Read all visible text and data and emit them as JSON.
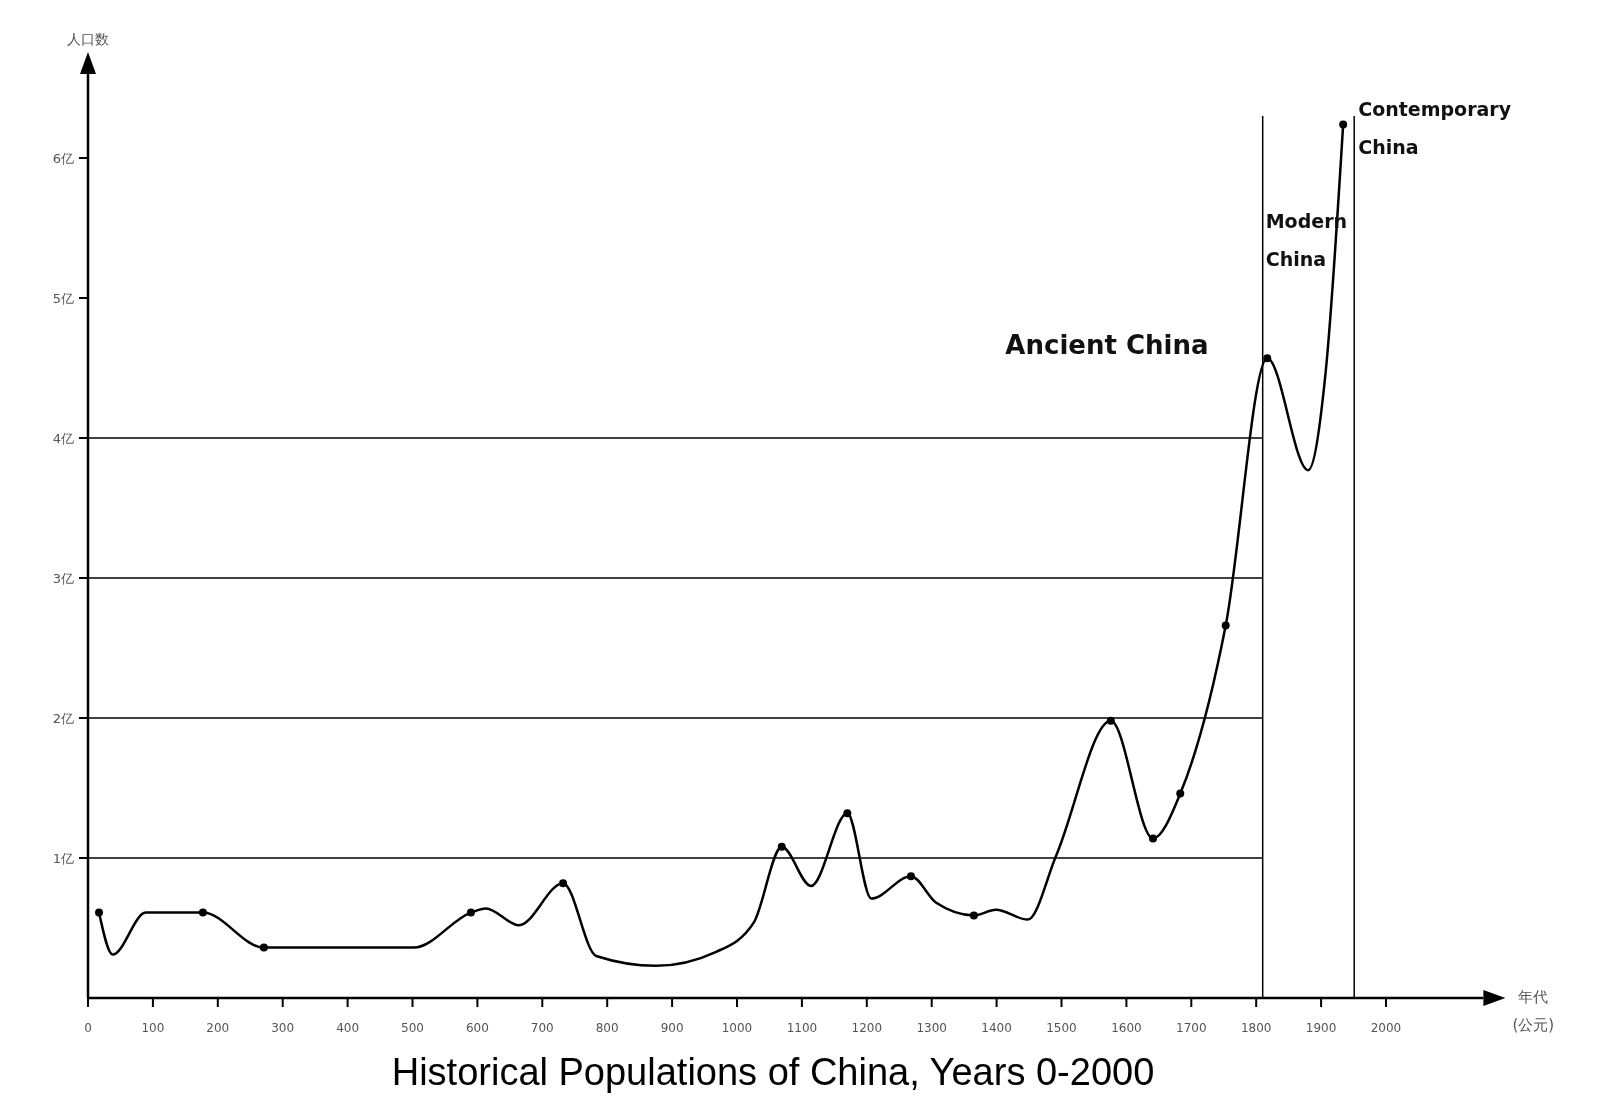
{
  "chart_data": {
    "type": "line",
    "title": "Historical Populations of China, Years 0-2000",
    "xlabel": "年代 (公元)",
    "ylabel": "人口数",
    "xlim": [
      0,
      2150
    ],
    "ylim": [
      0,
      6.6
    ],
    "xticks": [
      0,
      100,
      200,
      300,
      400,
      500,
      600,
      700,
      800,
      900,
      1000,
      1100,
      1200,
      1300,
      1400,
      1500,
      1600,
      1700,
      1800,
      1900,
      2000
    ],
    "yticks": [
      {
        "value": 1,
        "label": "1亿"
      },
      {
        "value": 2,
        "label": "2亿"
      },
      {
        "value": 3,
        "label": "3亿"
      },
      {
        "value": 4,
        "label": "4亿"
      },
      {
        "value": 5,
        "label": "5亿"
      },
      {
        "value": 6,
        "label": "6亿"
      }
    ],
    "series": [
      {
        "color": "#000000",
        "marker": "none",
        "x": [
          17,
          38,
          89,
          177,
          271,
          502,
          590,
          613,
          664,
          732,
          783,
          875,
          968,
          1026,
          1069,
          1114,
          1170,
          1207,
          1268,
          1307,
          1365,
          1399,
          1448,
          1492,
          1576,
          1641,
          1683,
          1753,
          1817,
          1880,
          1907,
          1934
        ],
        "values": [
          0.61,
          0.31,
          0.61,
          0.61,
          0.36,
          0.36,
          0.61,
          0.64,
          0.52,
          0.82,
          0.3,
          0.23,
          0.33,
          0.54,
          1.08,
          0.8,
          1.32,
          0.71,
          0.87,
          0.68,
          0.59,
          0.63,
          0.56,
          1.02,
          1.98,
          1.14,
          1.46,
          2.66,
          4.57,
          3.77,
          4.47,
          6.24
        ]
      },
      {
        "type": "scatter",
        "color": "#000000",
        "marker": "circle",
        "x": [
          17,
          177,
          271,
          590,
          732,
          1069,
          1170,
          1268,
          1365,
          1576,
          1641,
          1683,
          1753,
          1817,
          1934
        ],
        "values": [
          0.61,
          0.61,
          0.36,
          0.61,
          0.82,
          1.08,
          1.32,
          0.87,
          0.59,
          1.98,
          1.14,
          1.46,
          2.66,
          4.57,
          6.24
        ]
      }
    ],
    "ref_lines": [
      {
        "axis": "y",
        "value": 1
      },
      {
        "axis": "y",
        "value": 2
      },
      {
        "axis": "y",
        "value": 3
      },
      {
        "axis": "y",
        "value": 4
      },
      {
        "axis": "x",
        "value": 1810
      },
      {
        "axis": "x",
        "value": 1951
      }
    ],
    "annotations": [
      "Ancient China",
      "Modern China",
      "Contemporary China"
    ]
  }
}
